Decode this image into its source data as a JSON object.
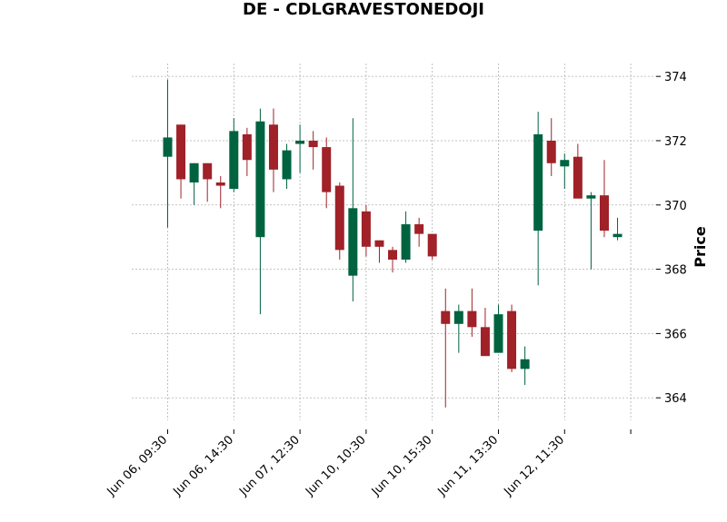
{
  "chart_data": {
    "type": "candlestick",
    "title": "DE - CDLGRAVESTONEDOJI",
    "ylabel": "Price",
    "xlabel": "",
    "ylim": [
      363.3,
      374.4
    ],
    "y_ticks": [
      364,
      366,
      368,
      370,
      372,
      374
    ],
    "x_tick_labels": [
      "Jun 06, 09:30",
      "Jun 06, 14:30",
      "Jun 07, 12:30",
      "Jun 10, 10:30",
      "Jun 10, 15:30",
      "Jun 11, 13:30",
      "Jun 12, 11:30"
    ],
    "x_tick_positions": [
      0,
      5,
      10,
      15,
      20,
      25,
      30,
      35
    ],
    "grid": true,
    "up_color": "#006340",
    "down_color": "#a02128",
    "candles": [
      {
        "o": 371.5,
        "h": 373.9,
        "l": 369.3,
        "c": 372.1
      },
      {
        "o": 372.5,
        "h": 372.5,
        "l": 370.2,
        "c": 370.8
      },
      {
        "o": 370.7,
        "h": 371.3,
        "l": 370.0,
        "c": 371.3
      },
      {
        "o": 371.3,
        "h": 371.3,
        "l": 370.1,
        "c": 370.8
      },
      {
        "o": 370.7,
        "h": 370.9,
        "l": 369.9,
        "c": 370.6
      },
      {
        "o": 370.5,
        "h": 372.7,
        "l": 370.4,
        "c": 372.3
      },
      {
        "o": 372.2,
        "h": 372.4,
        "l": 370.9,
        "c": 371.4
      },
      {
        "o": 369.0,
        "h": 373.0,
        "l": 366.6,
        "c": 372.6
      },
      {
        "o": 372.5,
        "h": 373.0,
        "l": 370.4,
        "c": 371.1
      },
      {
        "o": 370.8,
        "h": 371.9,
        "l": 370.5,
        "c": 371.7
      },
      {
        "o": 371.9,
        "h": 372.5,
        "l": 371.0,
        "c": 372.0
      },
      {
        "o": 372.0,
        "h": 372.3,
        "l": 371.1,
        "c": 371.8
      },
      {
        "o": 371.8,
        "h": 372.1,
        "l": 369.9,
        "c": 370.4
      },
      {
        "o": 370.6,
        "h": 370.7,
        "l": 368.3,
        "c": 368.6
      },
      {
        "o": 367.8,
        "h": 372.7,
        "l": 367.0,
        "c": 369.9
      },
      {
        "o": 369.8,
        "h": 370.0,
        "l": 368.4,
        "c": 368.7
      },
      {
        "o": 368.9,
        "h": 368.9,
        "l": 368.2,
        "c": 368.7
      },
      {
        "o": 368.6,
        "h": 368.7,
        "l": 367.9,
        "c": 368.3
      },
      {
        "o": 368.3,
        "h": 369.8,
        "l": 368.2,
        "c": 369.4
      },
      {
        "o": 369.4,
        "h": 369.6,
        "l": 368.7,
        "c": 369.1
      },
      {
        "o": 369.1,
        "h": 369.1,
        "l": 368.3,
        "c": 368.4
      },
      {
        "o": 366.7,
        "h": 367.4,
        "l": 363.7,
        "c": 366.3
      },
      {
        "o": 366.3,
        "h": 366.9,
        "l": 365.4,
        "c": 366.7
      },
      {
        "o": 366.7,
        "h": 367.4,
        "l": 365.9,
        "c": 366.2
      },
      {
        "o": 366.2,
        "h": 366.8,
        "l": 365.3,
        "c": 365.3
      },
      {
        "o": 365.4,
        "h": 366.9,
        "l": 365.4,
        "c": 366.6
      },
      {
        "o": 366.7,
        "h": 366.9,
        "l": 364.8,
        "c": 364.9
      },
      {
        "o": 364.9,
        "h": 365.6,
        "l": 364.4,
        "c": 365.2
      },
      {
        "o": 369.2,
        "h": 372.9,
        "l": 367.5,
        "c": 372.2
      },
      {
        "o": 372.0,
        "h": 372.7,
        "l": 370.9,
        "c": 371.3
      },
      {
        "o": 371.2,
        "h": 371.6,
        "l": 370.5,
        "c": 371.4
      },
      {
        "o": 371.5,
        "h": 371.9,
        "l": 370.2,
        "c": 370.2
      },
      {
        "o": 370.2,
        "h": 370.4,
        "l": 368.0,
        "c": 370.3
      },
      {
        "o": 370.3,
        "h": 371.4,
        "l": 369.0,
        "c": 369.2
      },
      {
        "o": 369.0,
        "h": 369.6,
        "l": 368.9,
        "c": 369.1
      }
    ]
  }
}
